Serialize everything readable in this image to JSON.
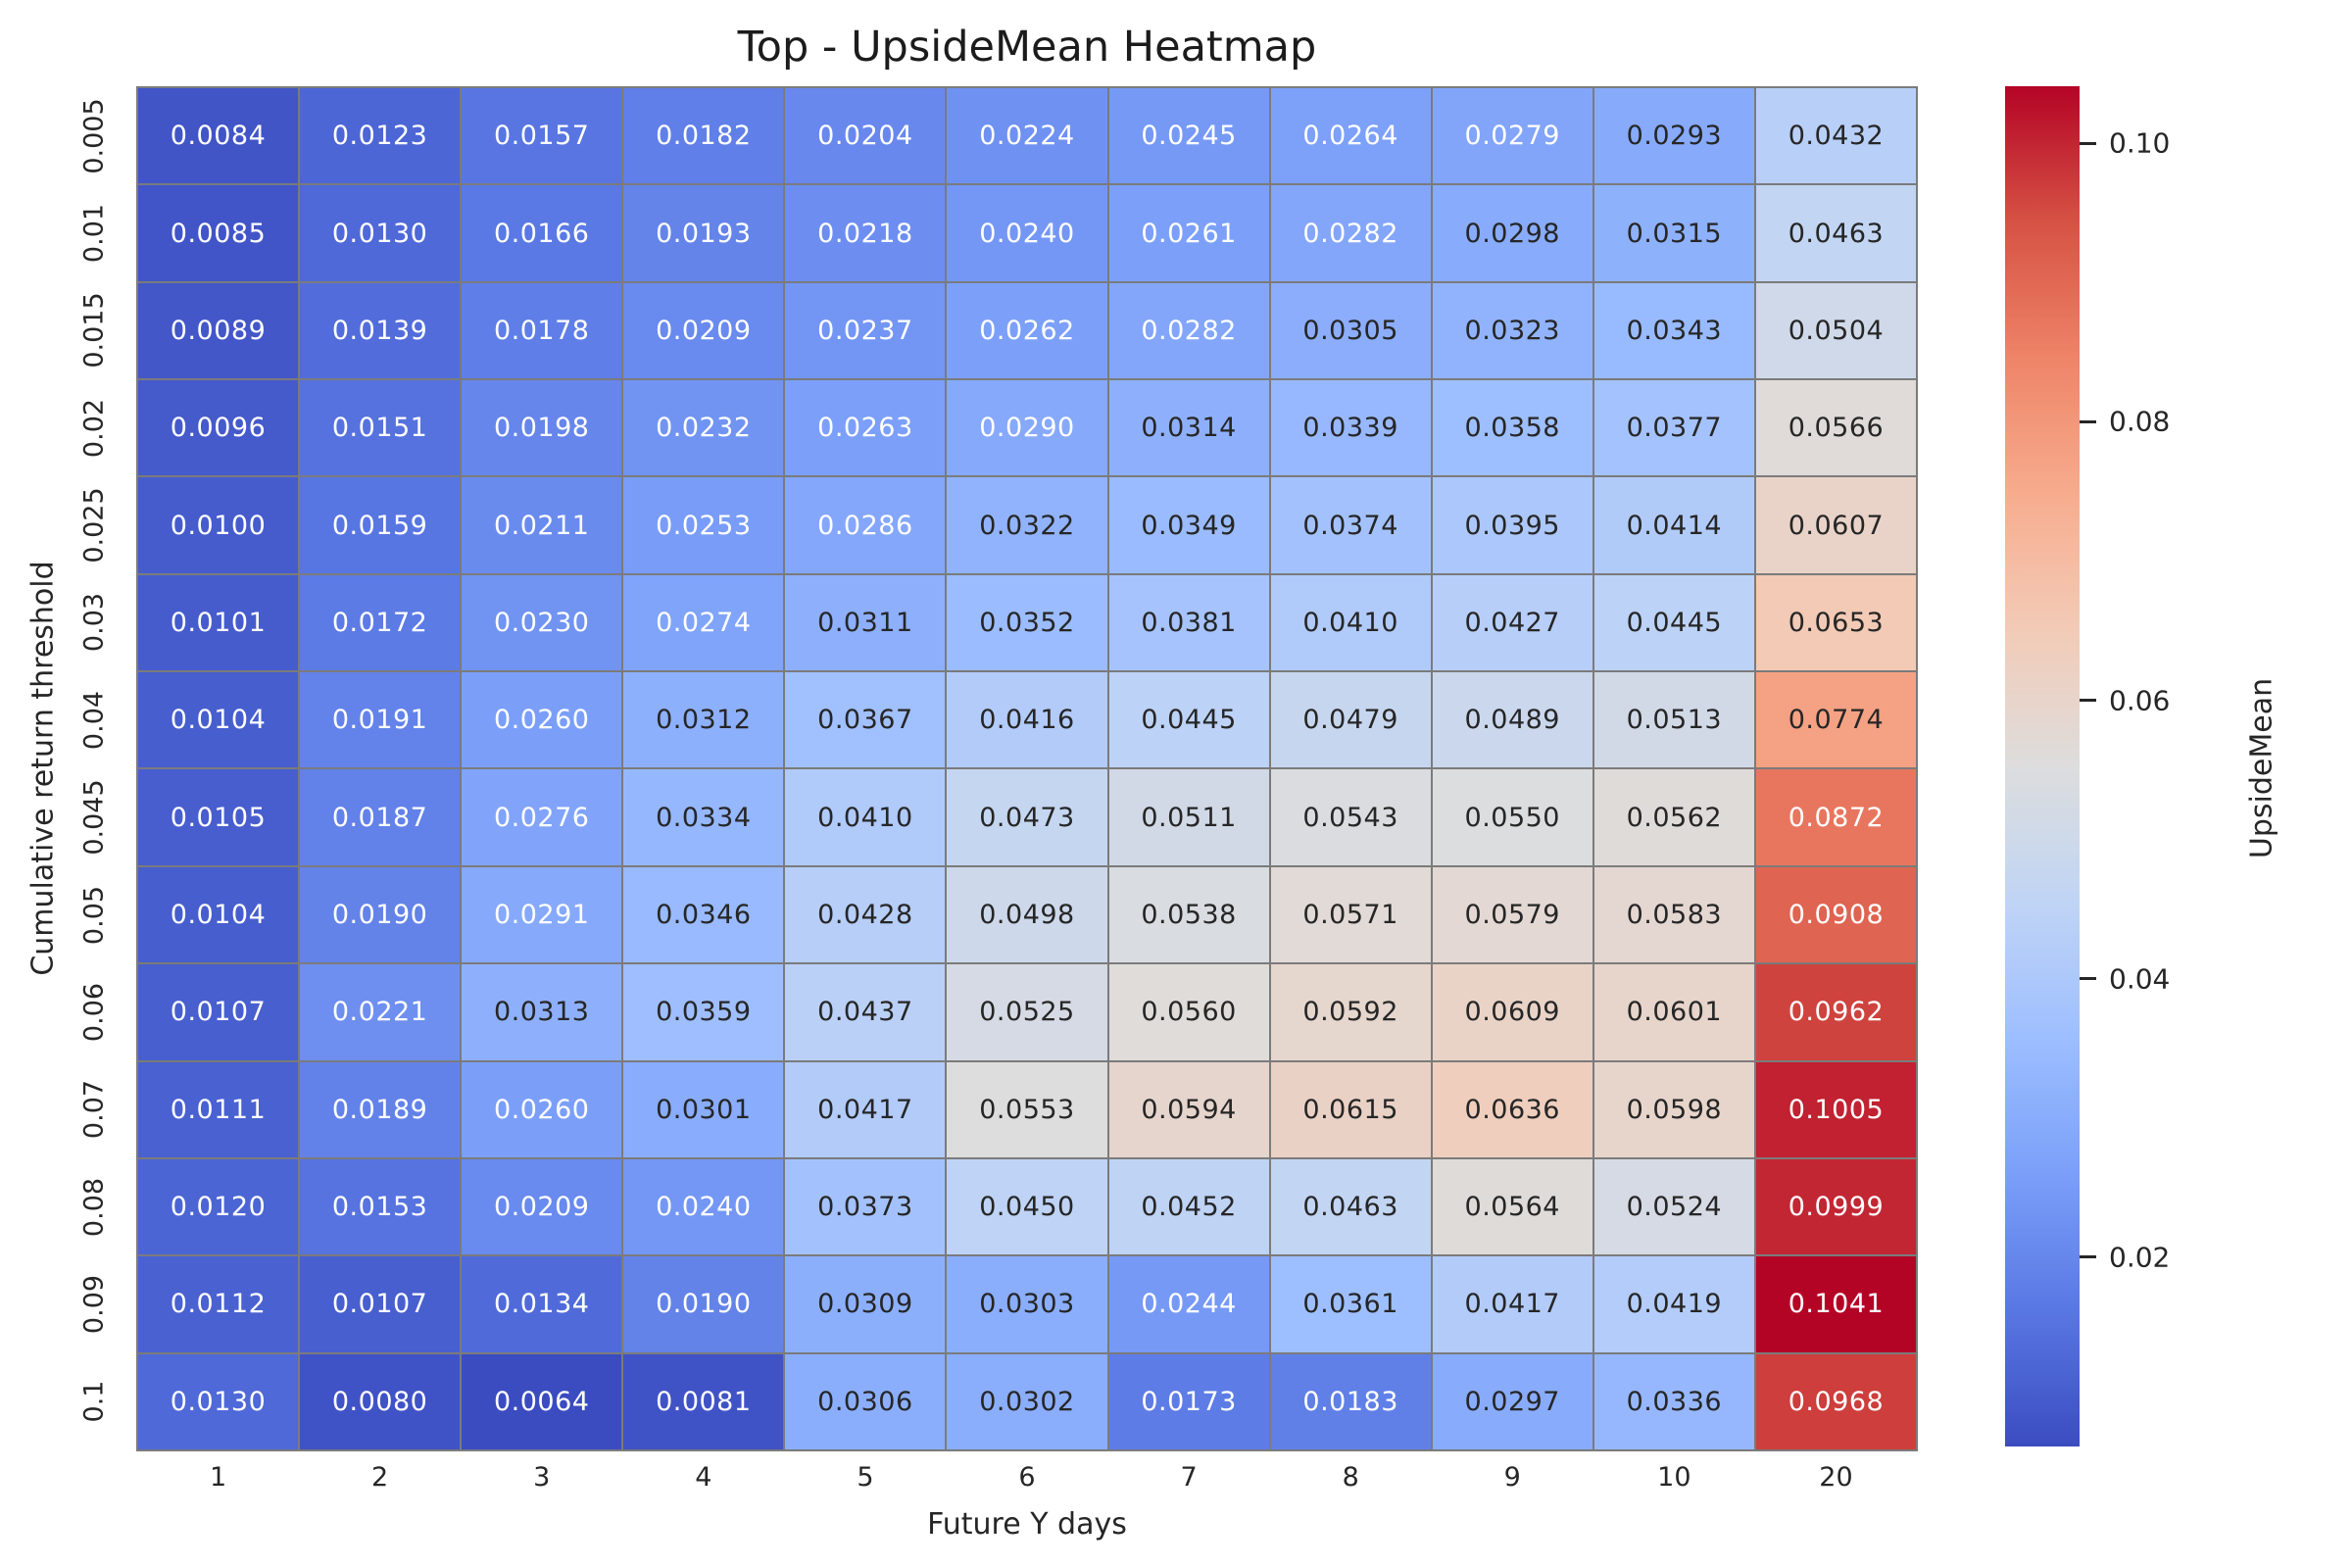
{
  "figure": {
    "background": "#ffffff"
  },
  "chart_data": {
    "type": "heatmap",
    "title": "Top - UpsideMean Heatmap",
    "xlabel": "Future Y days",
    "ylabel": "Cumulative return threshold",
    "colorbar_label": "UpsideMean",
    "colormap": "coolwarm",
    "grid_line_color": "#7b7b7b",
    "annot_color_light": "#ffffff",
    "annot_color_dark": "#262626",
    "luminance_threshold": 0.4055,
    "value_decimals": 4,
    "vmin": 0.0064,
    "vmax": 0.1041,
    "colorbar_tick_labels": [
      "0.10",
      "0.08",
      "0.06",
      "0.04",
      "0.02"
    ],
    "colorbar_tick_values": [
      0.1,
      0.08,
      0.06,
      0.04,
      0.02
    ],
    "colormap_anchors": [
      "#3B4CC0",
      "#5977E3",
      "#7B9FF9",
      "#9DBEFF",
      "#C0D4F5",
      "#DDDDDD",
      "#F2CBB7",
      "#F7AC8E",
      "#EE8468",
      "#D65244",
      "#B40426"
    ],
    "x_categories": [
      "1",
      "2",
      "3",
      "4",
      "5",
      "6",
      "7",
      "8",
      "9",
      "10",
      "20"
    ],
    "y_categories": [
      "0.005",
      "0.01",
      "0.015",
      "0.02",
      "0.025",
      "0.03",
      "0.04",
      "0.045",
      "0.05",
      "0.06",
      "0.07",
      "0.08",
      "0.09",
      "0.1"
    ],
    "values": [
      [
        0.0084,
        0.0123,
        0.0157,
        0.0182,
        0.0204,
        0.0224,
        0.0245,
        0.0264,
        0.0279,
        0.0293,
        0.0432
      ],
      [
        0.0085,
        0.013,
        0.0166,
        0.0193,
        0.0218,
        0.024,
        0.0261,
        0.0282,
        0.0298,
        0.0315,
        0.0463
      ],
      [
        0.0089,
        0.0139,
        0.0178,
        0.0209,
        0.0237,
        0.0262,
        0.0282,
        0.0305,
        0.0323,
        0.0343,
        0.0504
      ],
      [
        0.0096,
        0.0151,
        0.0198,
        0.0232,
        0.0263,
        0.029,
        0.0314,
        0.0339,
        0.0358,
        0.0377,
        0.0566
      ],
      [
        0.01,
        0.0159,
        0.0211,
        0.0253,
        0.0286,
        0.0322,
        0.0349,
        0.0374,
        0.0395,
        0.0414,
        0.0607
      ],
      [
        0.0101,
        0.0172,
        0.023,
        0.0274,
        0.0311,
        0.0352,
        0.0381,
        0.041,
        0.0427,
        0.0445,
        0.0653
      ],
      [
        0.0104,
        0.0191,
        0.026,
        0.0312,
        0.0367,
        0.0416,
        0.0445,
        0.0479,
        0.0489,
        0.0513,
        0.0774
      ],
      [
        0.0105,
        0.0187,
        0.0276,
        0.0334,
        0.041,
        0.0473,
        0.0511,
        0.0543,
        0.055,
        0.0562,
        0.0872
      ],
      [
        0.0104,
        0.019,
        0.0291,
        0.0346,
        0.0428,
        0.0498,
        0.0538,
        0.0571,
        0.0579,
        0.0583,
        0.0908
      ],
      [
        0.0107,
        0.0221,
        0.0313,
        0.0359,
        0.0437,
        0.0525,
        0.056,
        0.0592,
        0.0609,
        0.0601,
        0.0962
      ],
      [
        0.0111,
        0.0189,
        0.026,
        0.0301,
        0.0417,
        0.0553,
        0.0594,
        0.0615,
        0.0636,
        0.0598,
        0.1005
      ],
      [
        0.012,
        0.0153,
        0.0209,
        0.024,
        0.0373,
        0.045,
        0.0452,
        0.0463,
        0.0564,
        0.0524,
        0.0999
      ],
      [
        0.0112,
        0.0107,
        0.0134,
        0.019,
        0.0309,
        0.0303,
        0.0244,
        0.0361,
        0.0417,
        0.0419,
        0.1041
      ],
      [
        0.013,
        0.008,
        0.0064,
        0.0081,
        0.0306,
        0.0302,
        0.0173,
        0.0183,
        0.0297,
        0.0336,
        0.0968
      ]
    ]
  }
}
